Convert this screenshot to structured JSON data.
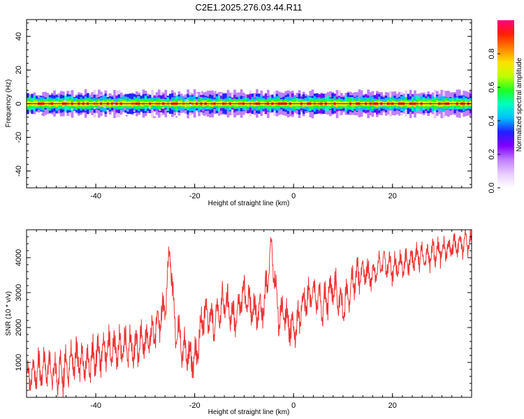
{
  "title": "C2E1.2025.276.03.44.R11",
  "chart_data": [
    {
      "type": "heatmap",
      "name": "spectrogram",
      "xlabel": "Height of straight line (km)",
      "ylabel": "Frequency (Hz)",
      "xlim": [
        -54,
        36
      ],
      "ylim": [
        -50,
        50
      ],
      "xticks": [
        -40,
        -20,
        0,
        20
      ],
      "yticks": [
        -40,
        -20,
        0,
        20,
        40
      ],
      "colorbar": {
        "label": "Normalized spectral amplitude",
        "range": [
          0,
          1
        ],
        "ticks": [
          0.0,
          0.2,
          0.4,
          0.6,
          0.8
        ],
        "colors": [
          "#ffffff",
          "#e8ccff",
          "#c080ff",
          "#8000ff",
          "#2020ff",
          "#00c0ff",
          "#00ffc0",
          "#20ff20",
          "#c0ff00",
          "#ffe000",
          "#ff8000",
          "#ff2000",
          "#ff0080"
        ]
      },
      "band_center_hz": 0,
      "band_halfwidth_hz": 3
    },
    {
      "type": "line",
      "name": "snr",
      "xlabel": "Height of straight line (km)",
      "ylabel": "SNR (10 * v/v)",
      "xlim": [
        -54,
        36
      ],
      "ylim": [
        0,
        4800
      ],
      "xticks": [
        -40,
        -20,
        0,
        20
      ],
      "yticks": [
        1000,
        2000,
        3000,
        4000
      ],
      "color": "#ee3333",
      "x": [
        -54,
        -52,
        -50,
        -48,
        -46,
        -44,
        -42,
        -40,
        -38,
        -36,
        -34,
        -32,
        -30,
        -28,
        -26,
        -25,
        -24,
        -22,
        -20,
        -18,
        -16,
        -14,
        -12,
        -10,
        -8,
        -6,
        -4.5,
        -3,
        -2,
        0,
        2,
        4,
        6,
        8,
        10,
        12,
        14,
        16,
        18,
        20,
        22,
        24,
        26,
        28,
        30,
        32,
        34,
        36
      ],
      "values": [
        500,
        700,
        900,
        600,
        800,
        1100,
        900,
        1200,
        1400,
        1300,
        1500,
        1400,
        1600,
        1900,
        2600,
        4300,
        2000,
        1300,
        1000,
        2500,
        2100,
        2800,
        2200,
        3000,
        2400,
        2600,
        4300,
        2200,
        2500,
        1800,
        2700,
        3000,
        2600,
        3200,
        2500,
        3300,
        3600,
        3500,
        3900,
        3700,
        3800,
        4000,
        4050,
        4100,
        4200,
        4300,
        4400,
        4450
      ]
    }
  ]
}
